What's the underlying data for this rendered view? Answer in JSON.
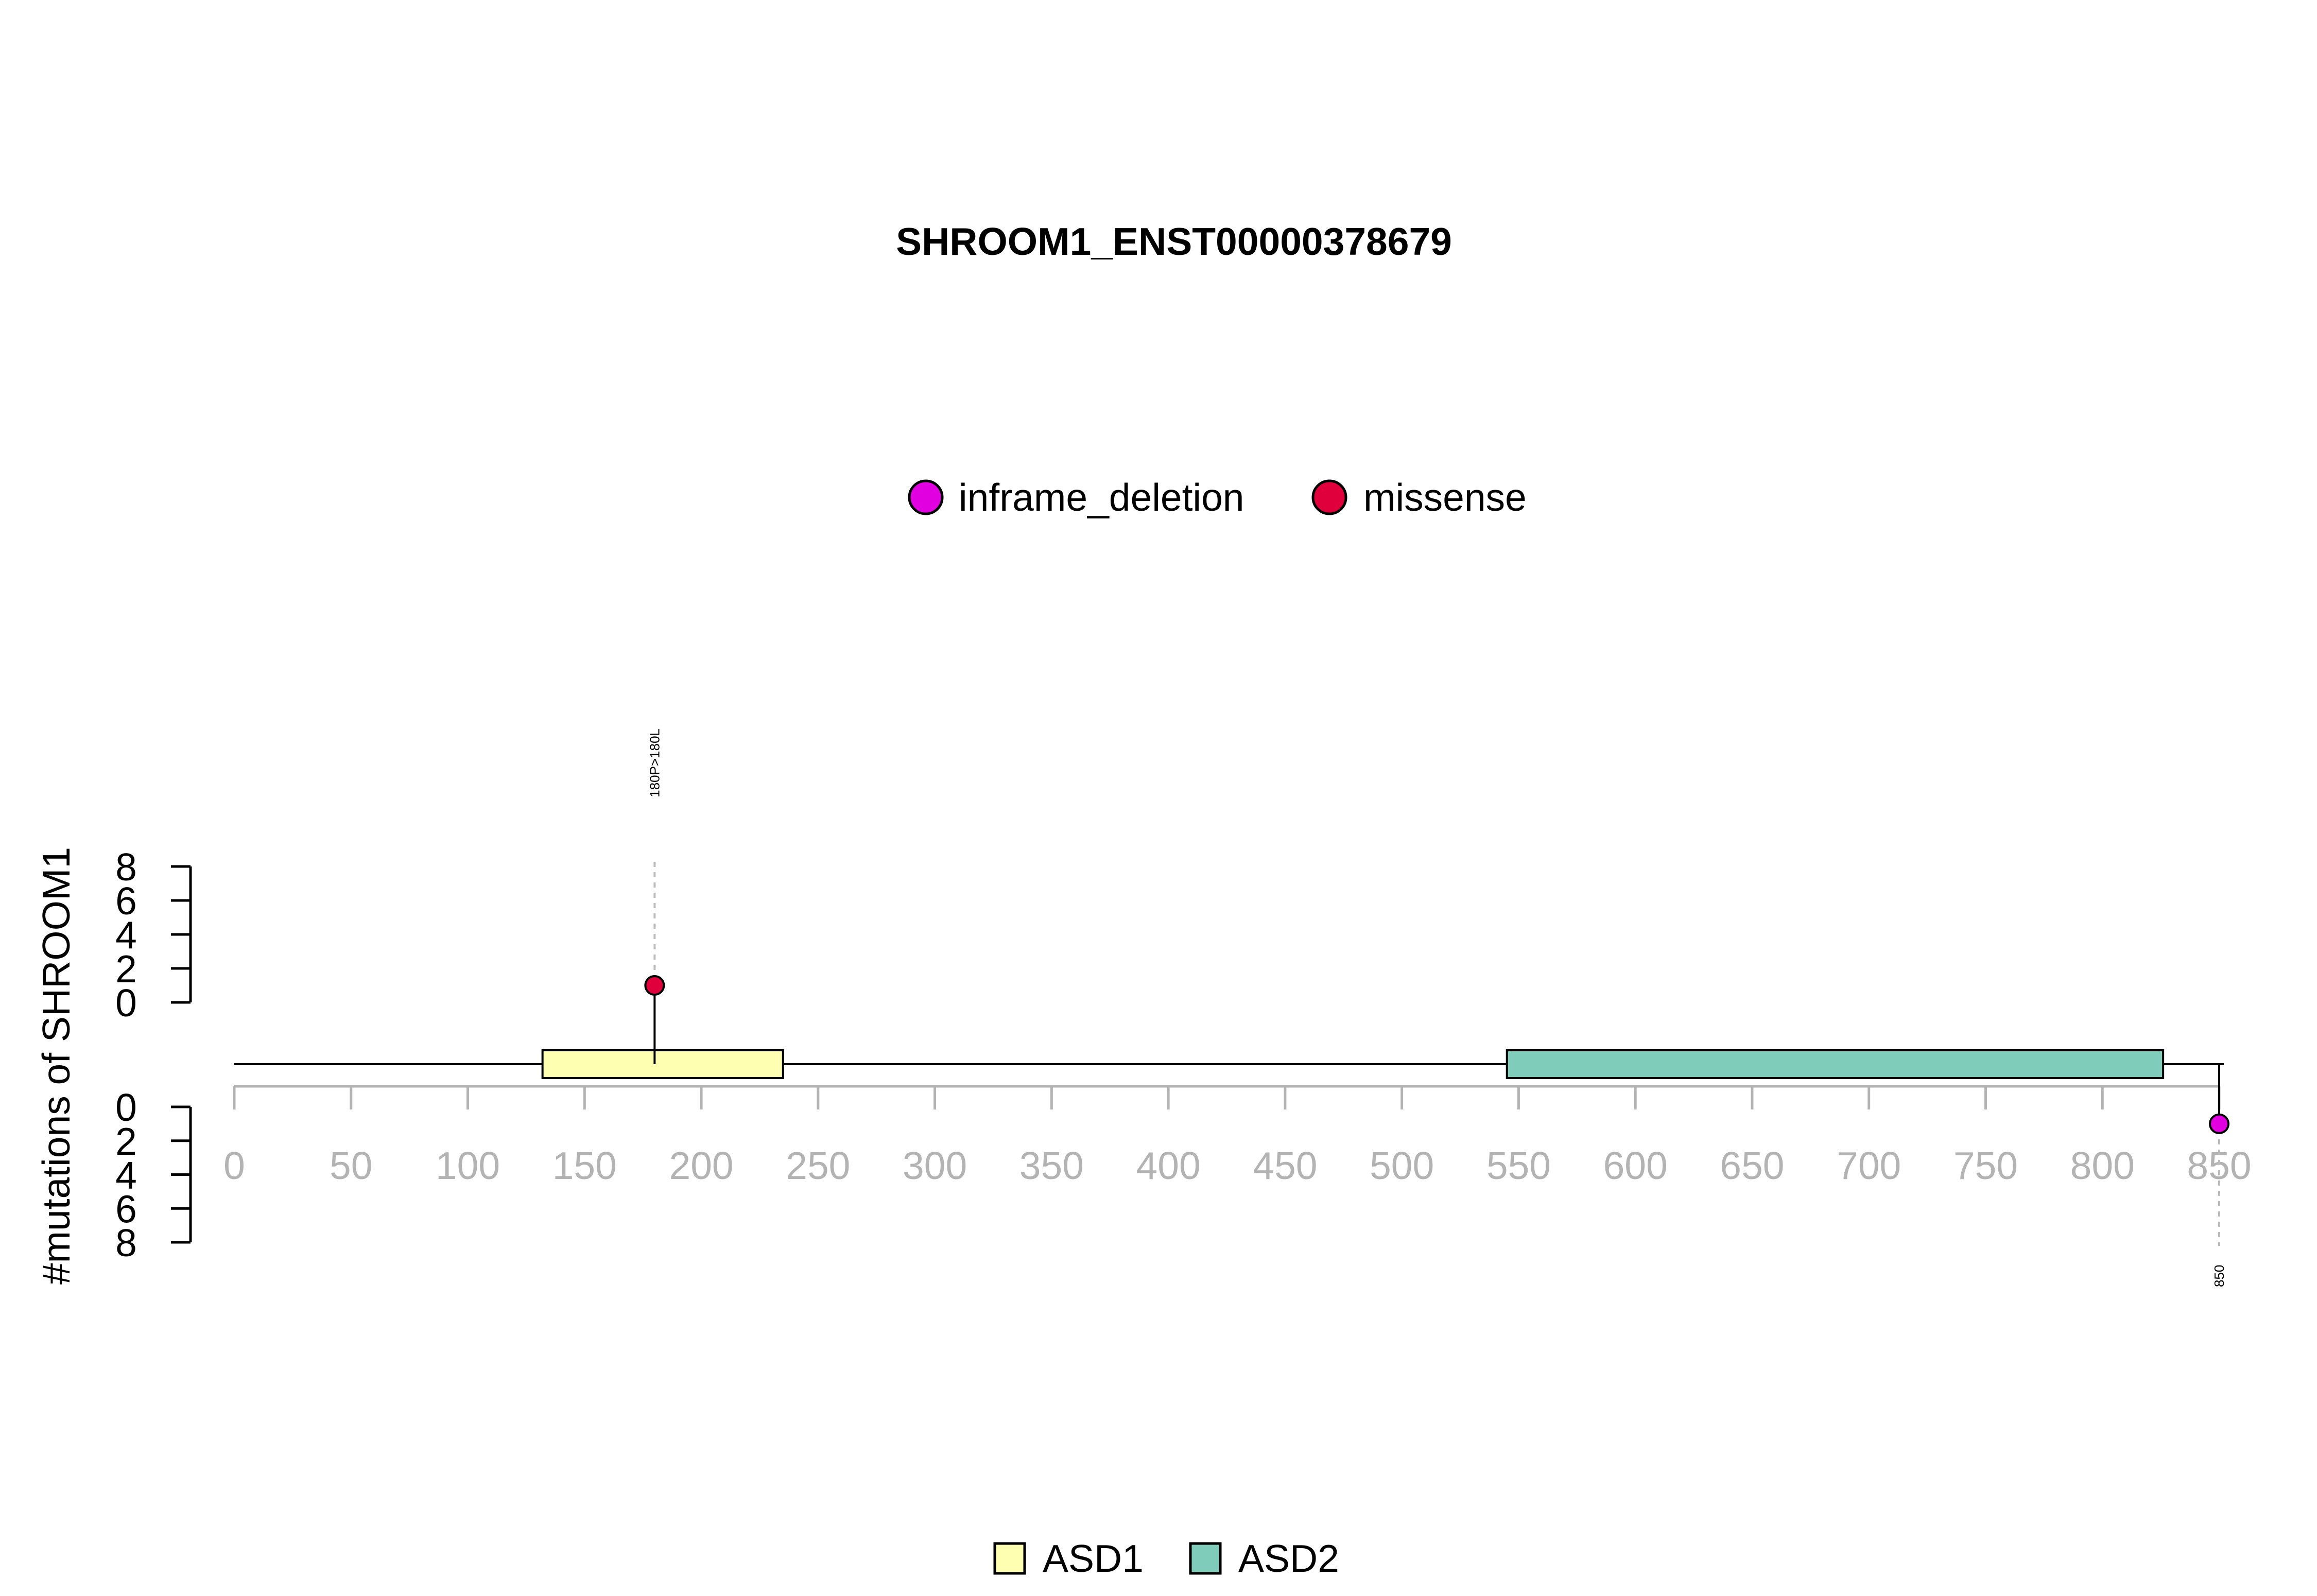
{
  "chart_data": {
    "type": "lollipop",
    "title": "SHROOM1_ENST00000378679",
    "ylabel": "#mutations of SHROOM1",
    "protein_length": 852,
    "x_ticks": [
      0,
      50,
      100,
      150,
      200,
      250,
      300,
      350,
      400,
      450,
      500,
      550,
      600,
      650,
      700,
      750,
      800,
      850
    ],
    "y_ticks_upper": [
      0,
      2,
      4,
      6,
      8
    ],
    "y_ticks_lower": [
      0,
      2,
      4,
      6,
      8
    ],
    "ylim": [
      0,
      8
    ],
    "mutation_types": [
      {
        "name": "inframe_deletion",
        "color": "#e000e0"
      },
      {
        "name": "missense",
        "color": "#e0003c"
      }
    ],
    "domains": [
      {
        "name": "ASD1",
        "start": 132,
        "end": 235,
        "color": "#ffffb2"
      },
      {
        "name": "ASD2",
        "start": 545,
        "end": 826,
        "color": "#7fccba"
      }
    ],
    "mutations": [
      {
        "position": 180,
        "count": 1,
        "type": "missense",
        "label": "180P>180L",
        "side": "top"
      },
      {
        "position": 850,
        "count": 1,
        "type": "inframe_deletion",
        "label": "850",
        "side": "bottom"
      }
    ]
  }
}
